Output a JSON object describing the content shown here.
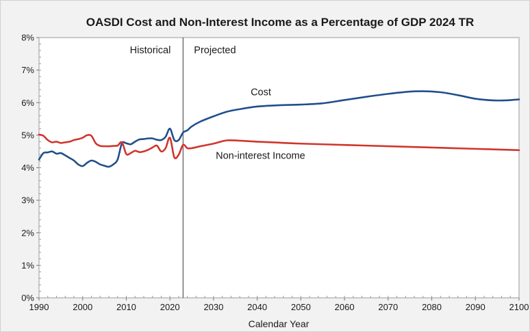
{
  "chart_data": {
    "type": "line",
    "title": "OASDI Cost and Non-Interest Income as a Percentage of GDP 2024 TR",
    "xlabel": "Calendar Year",
    "ylabel": "",
    "xlim": [
      1990,
      2100
    ],
    "ylim": [
      0,
      8
    ],
    "x_ticks": [
      1990,
      2000,
      2010,
      2020,
      2030,
      2040,
      2050,
      2060,
      2070,
      2080,
      2090,
      2100
    ],
    "y_ticks": [
      0,
      1,
      2,
      3,
      4,
      5,
      6,
      7,
      8
    ],
    "y_tick_labels": [
      "0%",
      "1%",
      "2%",
      "3%",
      "4%",
      "5%",
      "6%",
      "7%",
      "8%"
    ],
    "grid": false,
    "divider_year": 2023,
    "annotations": {
      "historical": "Historical",
      "projected": "Projected"
    },
    "series": [
      {
        "name": "Cost",
        "color": "#1f4e8c",
        "points": [
          [
            1990,
            4.25
          ],
          [
            1991,
            4.45
          ],
          [
            1992,
            4.47
          ],
          [
            1993,
            4.5
          ],
          [
            1994,
            4.43
          ],
          [
            1995,
            4.45
          ],
          [
            1996,
            4.38
          ],
          [
            1997,
            4.3
          ],
          [
            1998,
            4.22
          ],
          [
            1999,
            4.1
          ],
          [
            2000,
            4.05
          ],
          [
            2001,
            4.15
          ],
          [
            2002,
            4.22
          ],
          [
            2003,
            4.18
          ],
          [
            2004,
            4.1
          ],
          [
            2005,
            4.06
          ],
          [
            2006,
            4.03
          ],
          [
            2007,
            4.1
          ],
          [
            2008,
            4.25
          ],
          [
            2009,
            4.75
          ],
          [
            2010,
            4.75
          ],
          [
            2011,
            4.72
          ],
          [
            2012,
            4.8
          ],
          [
            2013,
            4.87
          ],
          [
            2014,
            4.88
          ],
          [
            2015,
            4.9
          ],
          [
            2016,
            4.9
          ],
          [
            2017,
            4.86
          ],
          [
            2018,
            4.85
          ],
          [
            2019,
            4.95
          ],
          [
            2020,
            5.2
          ],
          [
            2021,
            4.85
          ],
          [
            2022,
            4.85
          ],
          [
            2023,
            5.08
          ],
          [
            2024,
            5.15
          ],
          [
            2025,
            5.27
          ],
          [
            2027,
            5.42
          ],
          [
            2030,
            5.58
          ],
          [
            2033,
            5.72
          ],
          [
            2036,
            5.8
          ],
          [
            2040,
            5.88
          ],
          [
            2045,
            5.92
          ],
          [
            2050,
            5.94
          ],
          [
            2055,
            5.98
          ],
          [
            2060,
            6.08
          ],
          [
            2065,
            6.18
          ],
          [
            2070,
            6.27
          ],
          [
            2075,
            6.34
          ],
          [
            2078,
            6.35
          ],
          [
            2082,
            6.32
          ],
          [
            2086,
            6.23
          ],
          [
            2090,
            6.12
          ],
          [
            2094,
            6.07
          ],
          [
            2097,
            6.07
          ],
          [
            2100,
            6.1
          ]
        ]
      },
      {
        "name": "Non-interest Income",
        "color": "#d0352c",
        "points": [
          [
            1990,
            5.02
          ],
          [
            1991,
            4.98
          ],
          [
            1992,
            4.85
          ],
          [
            1993,
            4.78
          ],
          [
            1994,
            4.8
          ],
          [
            1995,
            4.76
          ],
          [
            1996,
            4.78
          ],
          [
            1997,
            4.8
          ],
          [
            1998,
            4.85
          ],
          [
            1999,
            4.88
          ],
          [
            2000,
            4.92
          ],
          [
            2001,
            5.0
          ],
          [
            2002,
            4.98
          ],
          [
            2003,
            4.75
          ],
          [
            2004,
            4.67
          ],
          [
            2005,
            4.66
          ],
          [
            2006,
            4.66
          ],
          [
            2007,
            4.67
          ],
          [
            2008,
            4.68
          ],
          [
            2009,
            4.78
          ],
          [
            2010,
            4.42
          ],
          [
            2011,
            4.45
          ],
          [
            2012,
            4.52
          ],
          [
            2013,
            4.48
          ],
          [
            2014,
            4.5
          ],
          [
            2015,
            4.55
          ],
          [
            2016,
            4.62
          ],
          [
            2017,
            4.68
          ],
          [
            2018,
            4.5
          ],
          [
            2019,
            4.6
          ],
          [
            2020,
            4.92
          ],
          [
            2021,
            4.32
          ],
          [
            2022,
            4.4
          ],
          [
            2023,
            4.7
          ],
          [
            2024,
            4.6
          ],
          [
            2025,
            4.6
          ],
          [
            2027,
            4.66
          ],
          [
            2030,
            4.74
          ],
          [
            2033,
            4.84
          ],
          [
            2036,
            4.83
          ],
          [
            2040,
            4.8
          ],
          [
            2045,
            4.77
          ],
          [
            2050,
            4.74
          ],
          [
            2060,
            4.7
          ],
          [
            2070,
            4.66
          ],
          [
            2080,
            4.62
          ],
          [
            2090,
            4.58
          ],
          [
            2100,
            4.54
          ]
        ]
      }
    ]
  }
}
